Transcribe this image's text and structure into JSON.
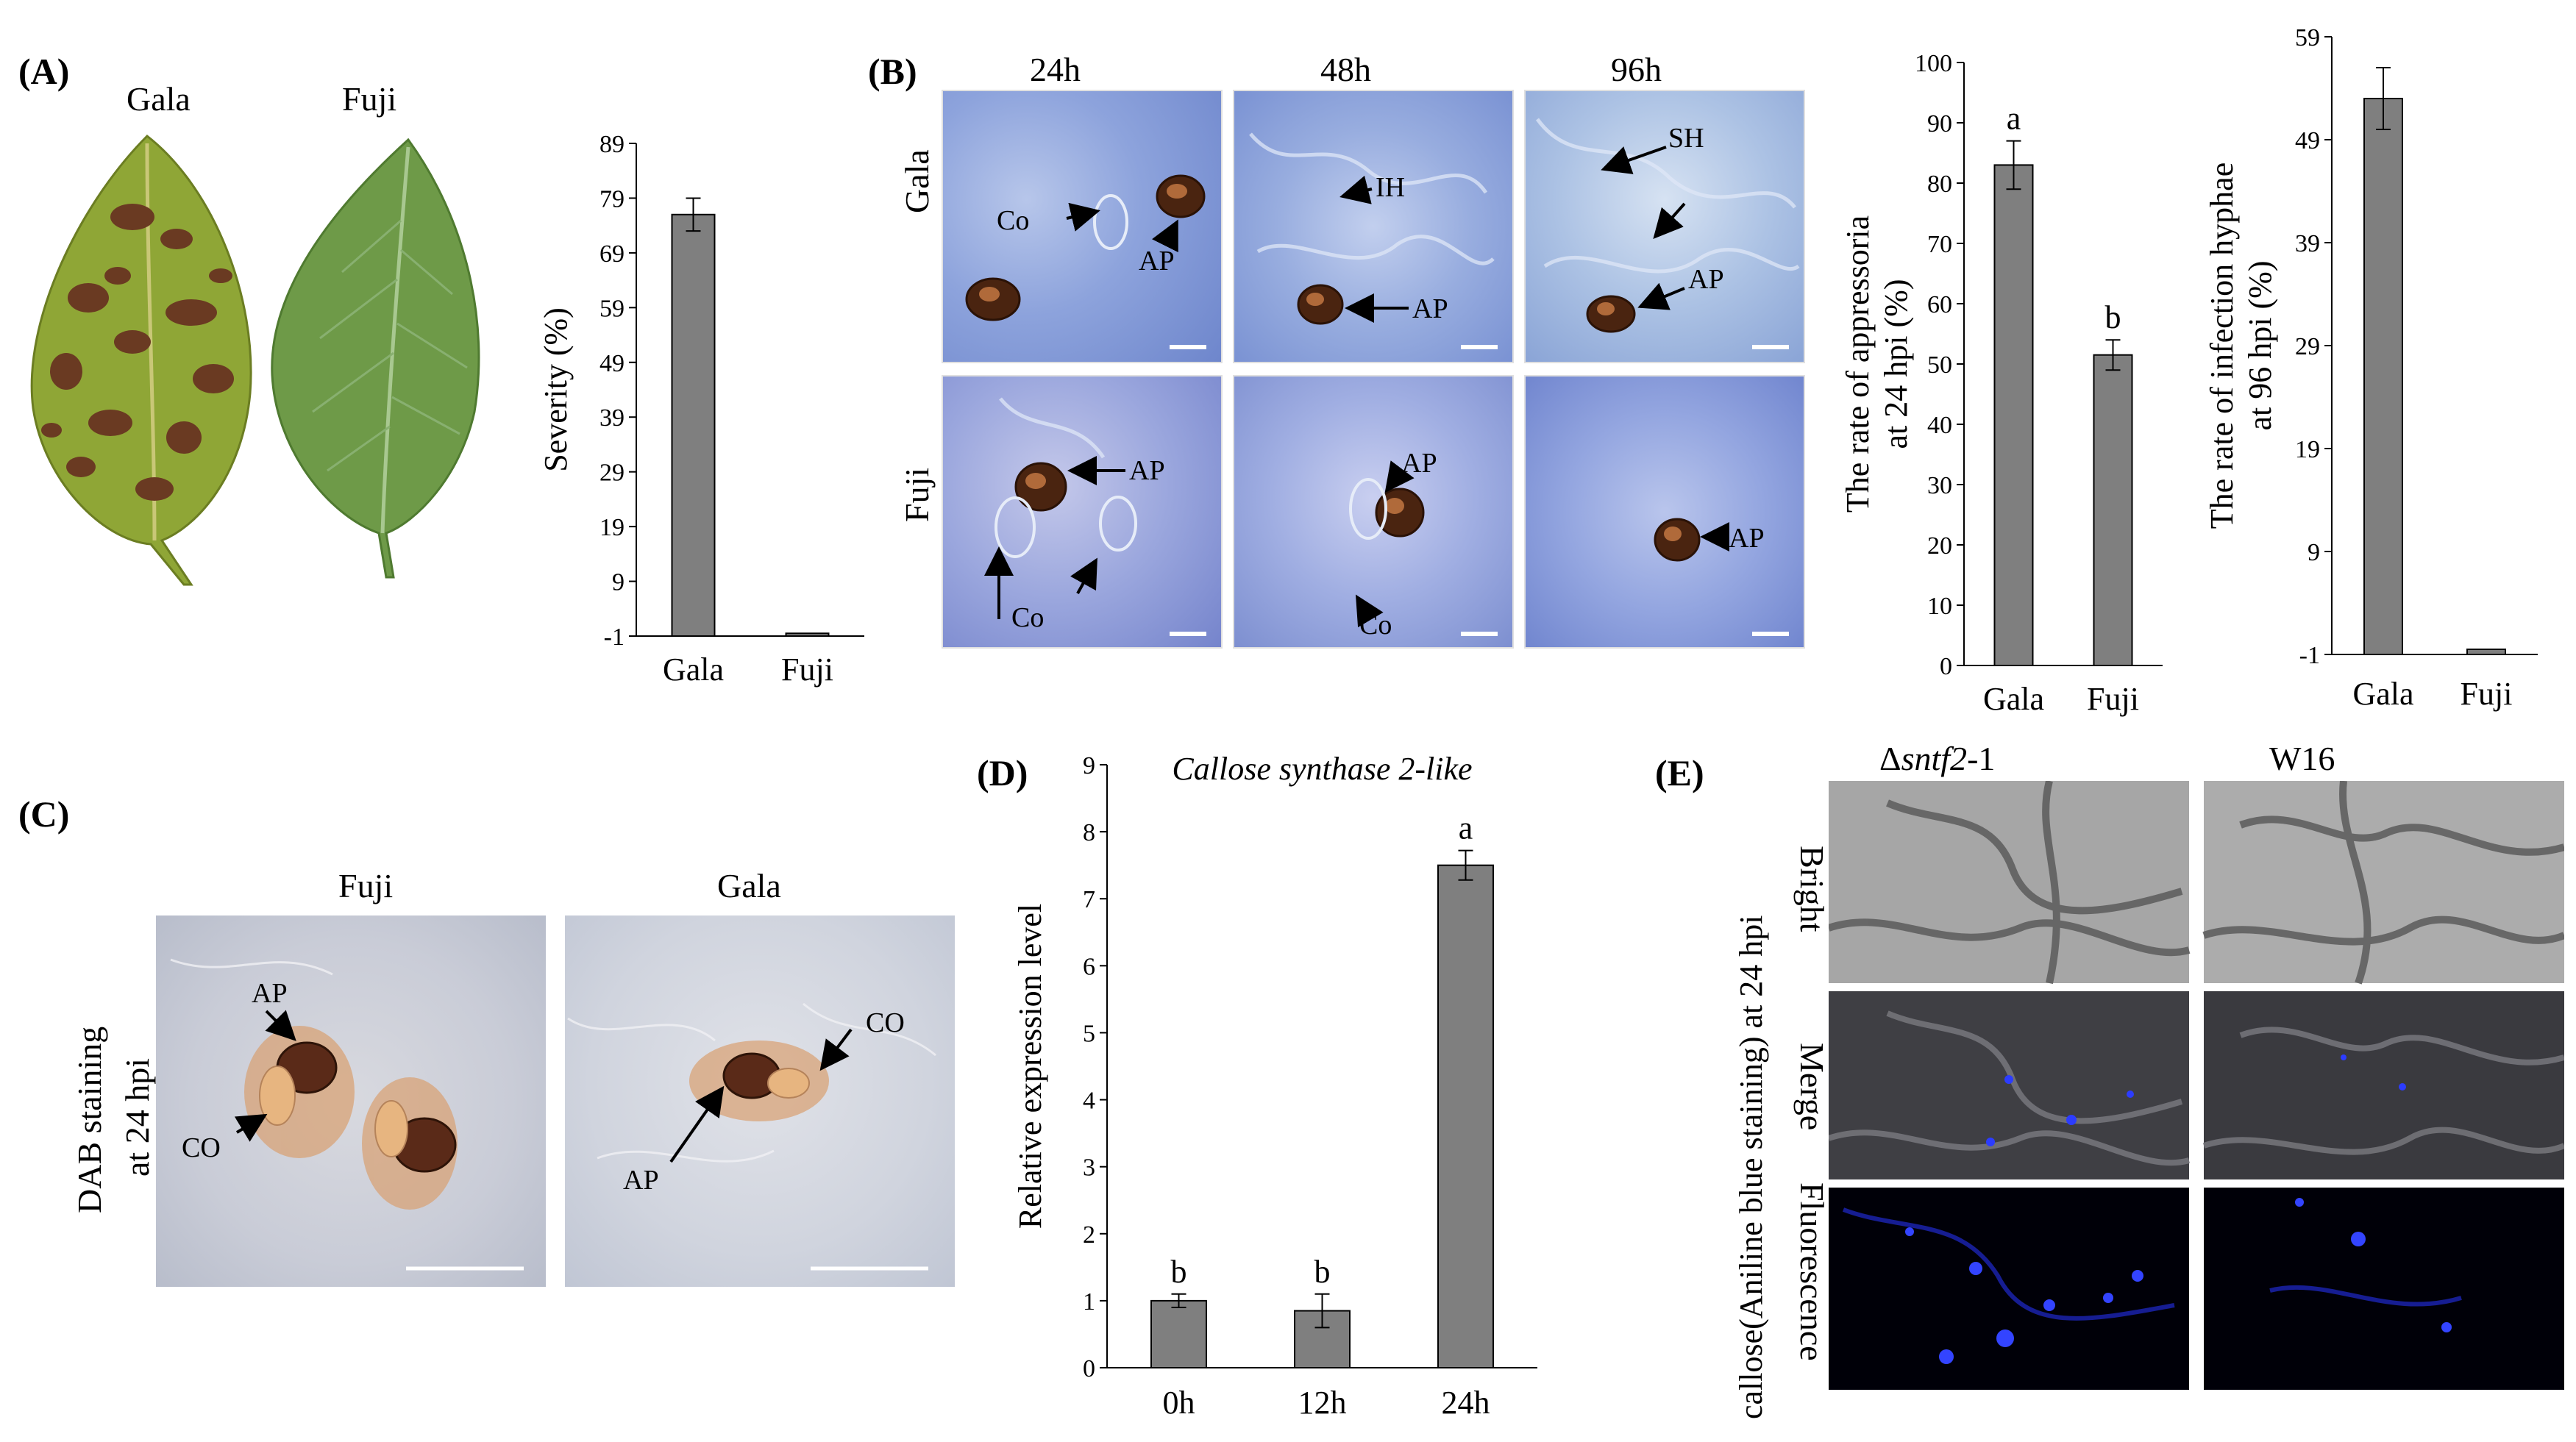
{
  "panels": {
    "A": {
      "label": "(A)",
      "leaf_labels": [
        "Gala",
        "Fuji"
      ],
      "chart_data": {
        "type": "bar",
        "categories": [
          "Gala",
          "Fuji"
        ],
        "values": [
          76,
          -0.5
        ],
        "errors": [
          3,
          0
        ],
        "ylabel": "Severity (%)",
        "yticks": [
          -1,
          9,
          19,
          29,
          39,
          49,
          59,
          69,
          79,
          89
        ],
        "ylim": [
          -1,
          89
        ]
      }
    },
    "B": {
      "label": "(B)",
      "times": [
        "24h",
        "48h",
        "96h"
      ],
      "rows": [
        "Gala",
        "Fuji"
      ],
      "annotations": [
        "Co",
        "AP",
        "IH",
        "AP",
        "SH",
        "AP",
        "AP",
        "Co",
        "AP",
        "Co",
        "AP"
      ],
      "chart_appressoria": {
        "type": "bar",
        "categories": [
          "Gala",
          "Fuji"
        ],
        "values": [
          83,
          51.5
        ],
        "errors": [
          4,
          2.5
        ],
        "letters": [
          "a",
          "b"
        ],
        "ylabel_lines": [
          "The rate of appressoria",
          "at 24 hpi (%)"
        ],
        "yticks": [
          0,
          10,
          20,
          30,
          40,
          50,
          60,
          70,
          80,
          90,
          100
        ],
        "ylim": [
          0,
          100
        ]
      },
      "chart_hyphae": {
        "type": "bar",
        "categories": [
          "Gala",
          "Fuji"
        ],
        "values": [
          53,
          -0.5
        ],
        "errors": [
          3,
          0
        ],
        "ylabel_lines": [
          "The rate of infection hyphae",
          "at 96 hpi (%)"
        ],
        "yticks": [
          -1,
          9,
          19,
          29,
          39,
          49,
          59
        ],
        "ylim": [
          -1,
          59
        ]
      }
    },
    "C": {
      "label": "(C)",
      "cols": [
        "Fuji",
        "Gala"
      ],
      "ylabel_lines": [
        "DAB staining",
        "at 24 hpi"
      ],
      "annotations": [
        "AP",
        "CO",
        "AP",
        "CO"
      ]
    },
    "D": {
      "label": "(D)",
      "chart_data": {
        "type": "bar",
        "title": "Callose synthase 2-like",
        "categories": [
          "0h",
          "12h",
          "24h"
        ],
        "values": [
          1.0,
          0.85,
          7.5
        ],
        "errors": [
          0.1,
          0.25,
          0.22
        ],
        "letters": [
          "b",
          "b",
          "a"
        ],
        "ylabel": "Relative expression level",
        "yticks": [
          0,
          1,
          2,
          3,
          4,
          5,
          6,
          7,
          8,
          9
        ],
        "ylim": [
          0,
          9
        ]
      }
    },
    "E": {
      "label": "(E)",
      "col_prefix": "Δ",
      "col_italic": "sntf2",
      "col_suffix": "-1",
      "col2": "W16",
      "rows": [
        "Bright",
        "Merge",
        "Fluorescence"
      ],
      "side_label": "callose(Aniline blue staining) at 24 hpi"
    }
  }
}
